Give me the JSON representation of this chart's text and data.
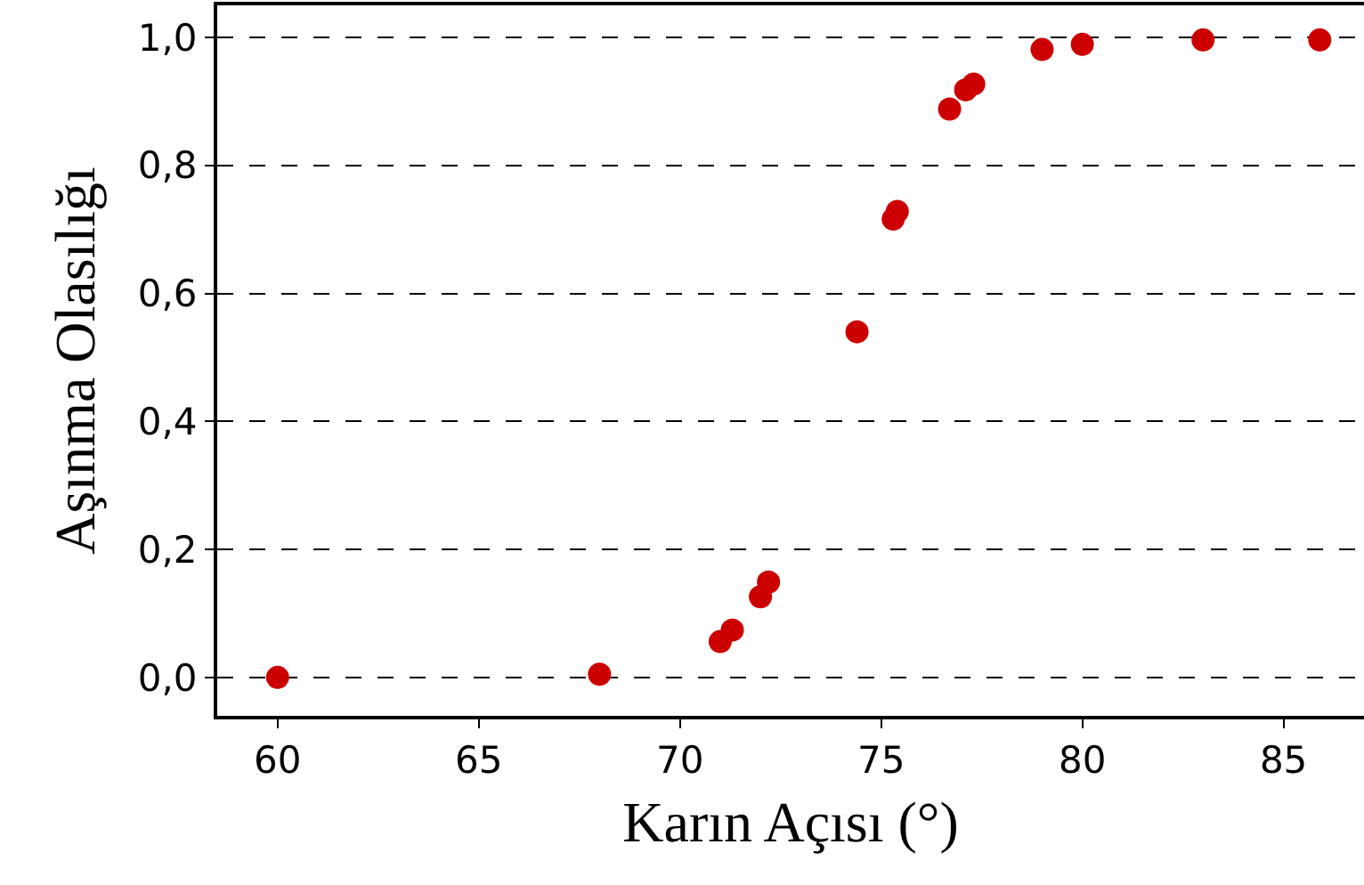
{
  "chart_data": {
    "type": "scatter",
    "xlabel": "Karın Açısı (°)",
    "ylabel": "Aşınma Olasılığı",
    "x": [
      60,
      68.0,
      71.0,
      71.3,
      72.0,
      72.2,
      74.4,
      75.3,
      75.4,
      76.7,
      77.1,
      77.3,
      79.0,
      80.0,
      83.0,
      85.9
    ],
    "series": [
      {
        "color": "#cc0000",
        "values": [
          0,
          0.005,
          0.056,
          0.074,
          0.126,
          0.149,
          0.54,
          0.716,
          0.728,
          0.888,
          0.918,
          0.927,
          0.981,
          0.989,
          0.996,
          0.996
        ]
      }
    ],
    "xlim": [
      58.5,
      87
    ],
    "xticks": [
      60,
      65,
      70,
      75,
      80,
      85
    ],
    "ylim": [
      -0.06,
      1.05
    ],
    "yticks": [
      {
        "value": 0,
        "label": "0,0"
      },
      {
        "value": 0.2,
        "label": "0,2"
      },
      {
        "value": 0.4,
        "label": "0,4"
      },
      {
        "value": 0.6,
        "label": "0,6"
      },
      {
        "value": 0.8,
        "label": "0,8"
      },
      {
        "value": 1,
        "label": "1,0"
      }
    ],
    "grid": "y",
    "marker": "circle",
    "legend": false
  }
}
